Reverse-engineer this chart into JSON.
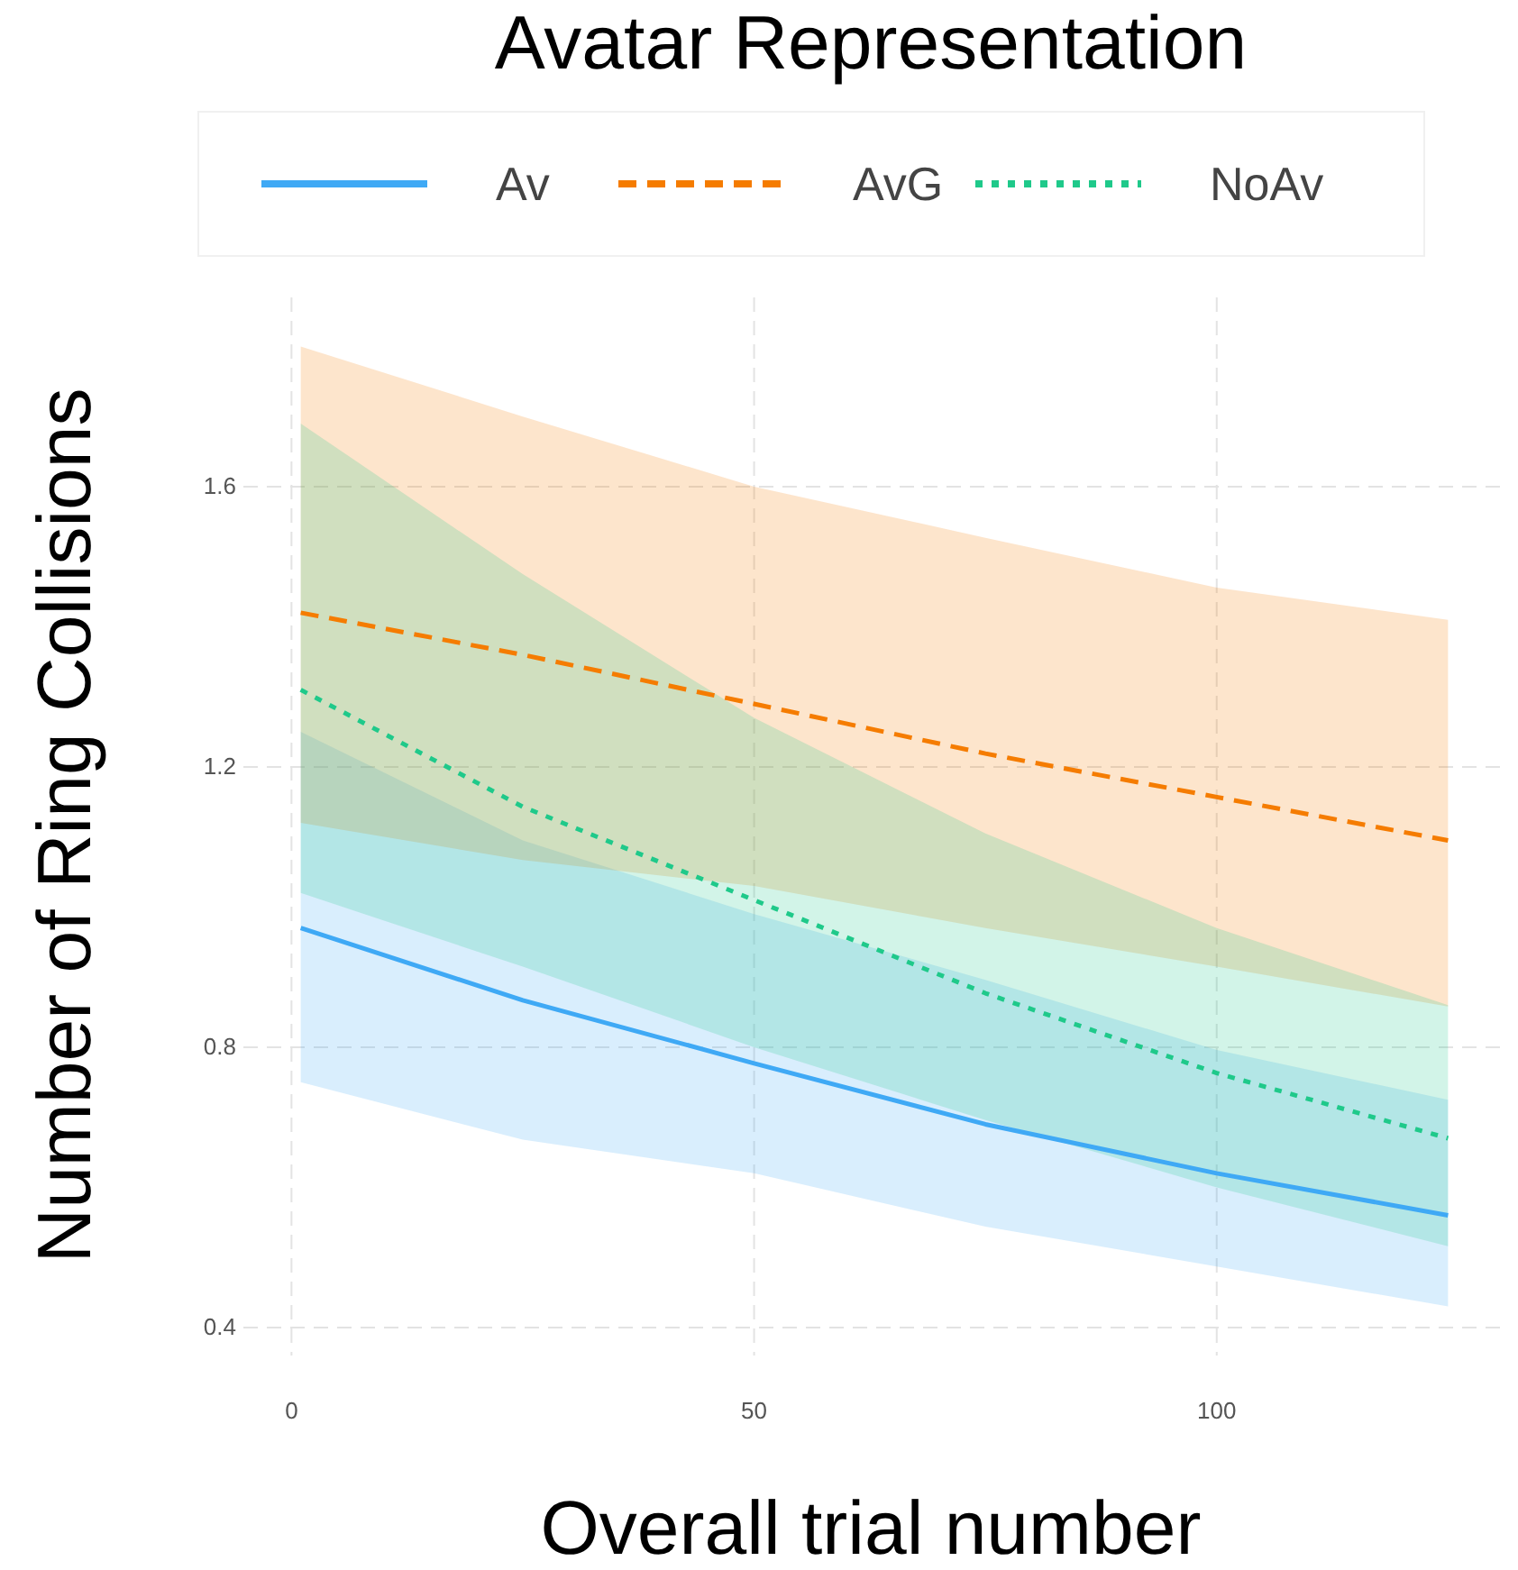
{
  "chart_data": {
    "type": "line",
    "title": "Avatar Representation",
    "xlabel": "Overall trial number",
    "ylabel": "Number of Ring Collisions",
    "legend": "top",
    "grid": true,
    "xlim": [
      -5.2,
      131.2
    ],
    "xticks": [
      0,
      50,
      100
    ],
    "ylim": [
      0.36,
      1.87
    ],
    "yticks": [
      0.4,
      0.8,
      1.2,
      1.6
    ],
    "series": [
      {
        "name": "Av",
        "color": "#3fa9f5",
        "line_style": "solid",
        "x": [
          1,
          25,
          50,
          75,
          100,
          125
        ],
        "values": [
          0.97,
          0.867,
          0.777,
          0.69,
          0.62,
          0.56
        ],
        "lower": [
          0.75,
          0.668,
          0.62,
          0.544,
          0.487,
          0.43
        ],
        "upper": [
          1.25,
          1.095,
          0.99,
          0.896,
          0.796,
          0.725
        ]
      },
      {
        "name": "AvG",
        "color": "#f57c00",
        "line_style": "dashed",
        "x": [
          1,
          25,
          50,
          75,
          100,
          125
        ],
        "values": [
          1.42,
          1.36,
          1.29,
          1.219,
          1.157,
          1.095
        ],
        "lower": [
          1.12,
          1.067,
          1.03,
          0.97,
          0.915,
          0.858
        ],
        "upper": [
          1.8,
          1.7,
          1.6,
          1.527,
          1.456,
          1.41
        ]
      },
      {
        "name": "NoAv",
        "color": "#1fc98a",
        "line_style": "dotted",
        "x": [
          1,
          25,
          50,
          75,
          100,
          125
        ],
        "values": [
          1.31,
          1.143,
          1.01,
          0.877,
          0.763,
          0.67
        ],
        "lower": [
          1.02,
          0.915,
          0.8,
          0.696,
          0.6,
          0.516
        ],
        "upper": [
          1.69,
          1.475,
          1.27,
          1.105,
          0.97,
          0.86
        ]
      }
    ]
  }
}
